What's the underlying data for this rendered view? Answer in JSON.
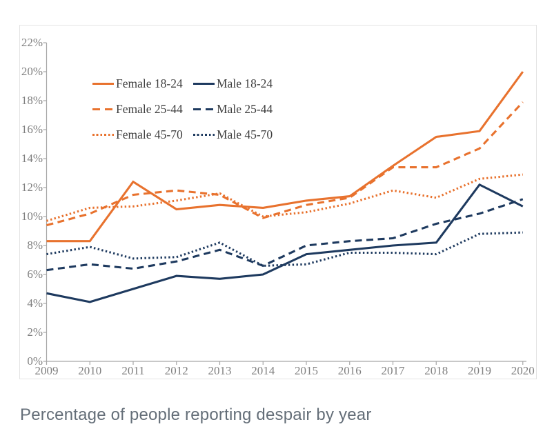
{
  "caption": "Percentage of people reporting despair by year",
  "colors": {
    "female_accent": "#e8722e",
    "male_accent": "#1e3a5f",
    "axis_line": "#a6a6a6",
    "tick_label": "#808080",
    "legend_text": "#3f3f3f",
    "caption_text": "#646e78",
    "card_border": "#e4e4e4"
  },
  "chart_data": {
    "type": "line",
    "title": "Percentage of people reporting despair by year",
    "x": [
      2009,
      2010,
      2011,
      2012,
      2013,
      2014,
      2015,
      2016,
      2017,
      2018,
      2019,
      2020
    ],
    "xlabel": "",
    "ylabel": "",
    "ylim": [
      0,
      22
    ],
    "y_tick_step": 2,
    "y_tick_labels": [
      "0%",
      "2%",
      "4%",
      "6%",
      "8%",
      "10%",
      "12%",
      "14%",
      "16%",
      "18%",
      "20%",
      "22%"
    ],
    "grid": false,
    "legend_position": "top-left-inside",
    "series": [
      {
        "name": "Female 18-24",
        "color": "#e8722e",
        "style": "solid",
        "values": [
          8.3,
          8.3,
          12.4,
          10.5,
          10.8,
          10.6,
          11.1,
          11.4,
          13.5,
          15.5,
          15.9,
          20.0
        ]
      },
      {
        "name": "Female 25-44",
        "color": "#e8722e",
        "style": "dashed",
        "values": [
          9.4,
          10.2,
          11.5,
          11.8,
          11.5,
          9.9,
          10.8,
          11.3,
          13.4,
          13.4,
          14.7,
          17.9
        ]
      },
      {
        "name": "Female 45-70",
        "color": "#e8722e",
        "style": "dotted",
        "values": [
          9.7,
          10.6,
          10.7,
          11.1,
          11.6,
          10.0,
          10.3,
          10.9,
          11.8,
          11.3,
          12.6,
          12.9
        ]
      },
      {
        "name": "Male 18-24",
        "color": "#1e3a5f",
        "style": "solid",
        "values": [
          4.7,
          4.1,
          5.0,
          5.9,
          5.7,
          6.0,
          7.4,
          7.7,
          8.0,
          8.2,
          12.2,
          10.7
        ]
      },
      {
        "name": "Male 25-44",
        "color": "#1e3a5f",
        "style": "dashed",
        "values": [
          6.3,
          6.7,
          6.4,
          6.9,
          7.7,
          6.6,
          8.0,
          8.3,
          8.5,
          9.5,
          10.2,
          11.2
        ]
      },
      {
        "name": "Male 45-70",
        "color": "#1e3a5f",
        "style": "dotted",
        "values": [
          7.4,
          7.9,
          7.1,
          7.2,
          8.2,
          6.6,
          6.7,
          7.5,
          7.5,
          7.4,
          8.8,
          8.9
        ]
      }
    ]
  }
}
